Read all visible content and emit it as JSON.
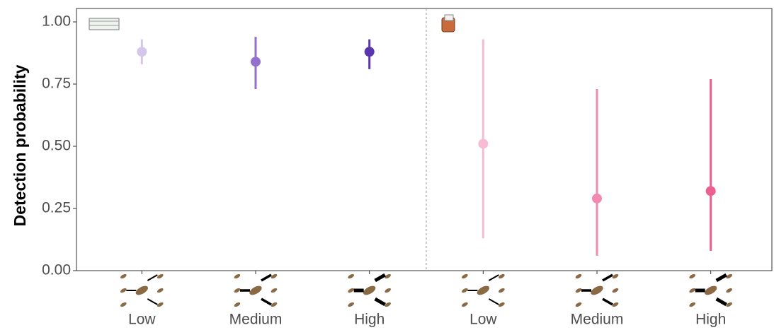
{
  "chart_data": {
    "type": "pointrange",
    "y_label": "Detection probability",
    "categories": [
      "Low",
      "Medium",
      "High",
      "Low",
      "Medium",
      "High"
    ],
    "values": [
      0.88,
      0.84,
      0.88,
      0.51,
      0.29,
      0.32
    ],
    "lower": [
      0.83,
      0.73,
      0.81,
      0.13,
      0.06,
      0.08
    ],
    "upper": [
      0.93,
      0.94,
      0.93,
      0.93,
      0.73,
      0.77
    ],
    "colors": [
      "#d4c8ea",
      "#9370cc",
      "#5a35b0",
      "#f7bcd3",
      "#f08ab0",
      "#ec5f91"
    ],
    "ylim": [
      0,
      1.054
    ],
    "yticks": [
      {
        "value": 0,
        "label": "0.00"
      },
      {
        "value": 0.25,
        "label": "0.25"
      },
      {
        "value": 0.5,
        "label": "0.50"
      },
      {
        "value": 0.75,
        "label": "0.75"
      },
      {
        "value": 1,
        "label": "1.00"
      }
    ],
    "grid": false
  }
}
